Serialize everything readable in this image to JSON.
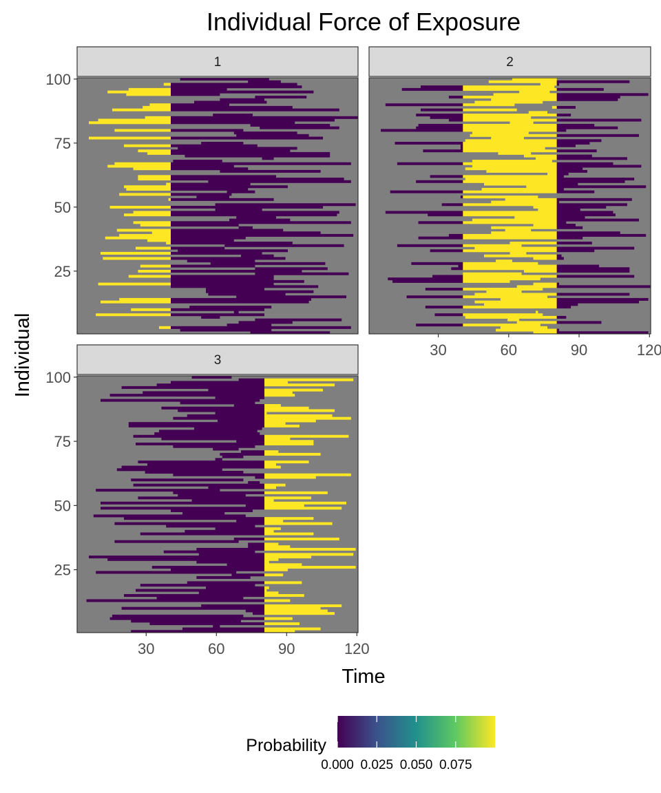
{
  "chart_data": {
    "type": "heatmap",
    "title": "Individual Force of Exposure",
    "xlabel": "Time",
    "ylabel": "Individual",
    "xlim": [
      1,
      120
    ],
    "ylim": [
      1,
      100
    ],
    "x_ticks": [
      "30",
      "60",
      "90",
      "120"
    ],
    "y_ticks": [
      "25",
      "50",
      "75",
      "100"
    ],
    "panels": [
      {
        "strip": "1",
        "exposure_window": [
          1,
          40
        ],
        "pre_window_value": 0,
        "in_window_value": 0.1,
        "post_window_value": 0
      },
      {
        "strip": "2",
        "exposure_window": [
          41,
          80
        ],
        "pre_window_value": 0,
        "in_window_value": 0.1,
        "post_window_value": 0
      },
      {
        "strip": "3",
        "exposure_window": [
          81,
          120
        ],
        "pre_window_value": 0,
        "in_window_value": 0.1,
        "post_window_value": 0
      }
    ],
    "missing_color": "#7f7f7f",
    "legend": {
      "title": "Probability",
      "position": "bottom",
      "range": [
        0,
        0.1
      ],
      "labels": [
        "0.000",
        "0.025",
        "0.050",
        "0.075"
      ],
      "colors": [
        "#440154",
        "#3b528b",
        "#21918c",
        "#5ec962",
        "#fde725"
      ]
    },
    "grid": false
  }
}
